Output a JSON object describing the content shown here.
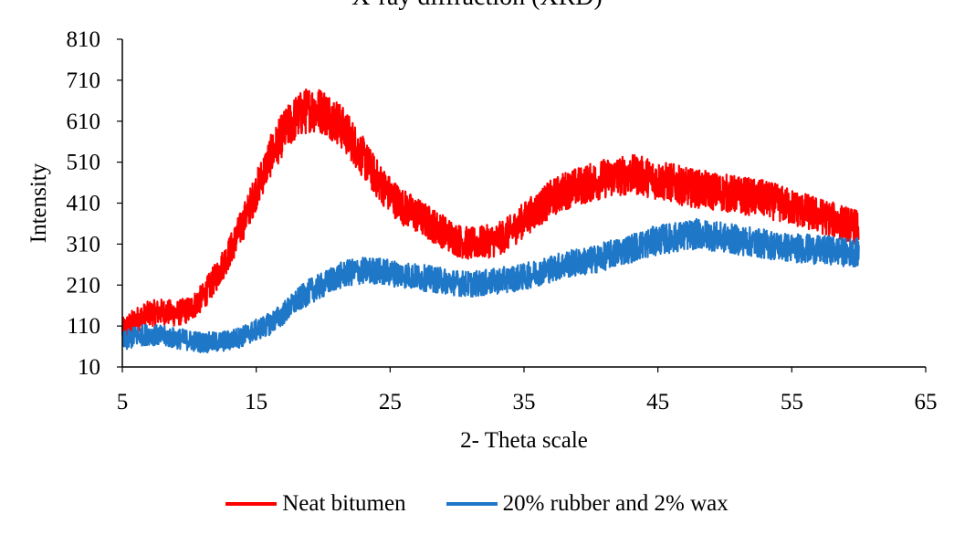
{
  "chart_data": {
    "type": "line",
    "title": "X-ray diffraction (XRD)",
    "xlabel": "2- Theta scale",
    "ylabel": "Intensity",
    "xlim": [
      5,
      65
    ],
    "ylim": [
      10,
      810
    ],
    "xticks": [
      5,
      15,
      25,
      35,
      45,
      55,
      65
    ],
    "yticks": [
      10,
      110,
      210,
      310,
      410,
      510,
      610,
      710,
      810
    ],
    "grid": false,
    "legend_position": "bottom",
    "series": [
      {
        "name": "Neat bitumen",
        "color": "#ff0000",
        "noise": 45,
        "x": [
          5,
          6,
          7,
          8,
          9,
          10,
          11,
          12,
          13,
          14,
          15,
          16,
          17,
          18,
          19,
          20,
          21,
          22,
          23,
          24,
          25,
          26,
          27,
          28,
          29,
          30,
          31,
          32,
          33,
          34,
          35,
          36,
          37,
          38,
          39,
          40,
          41,
          42,
          43,
          44,
          45,
          46,
          47,
          48,
          49,
          50,
          51,
          52,
          53,
          54,
          55,
          56,
          57,
          58,
          59,
          60
        ],
        "y": [
          100,
          125,
          140,
          145,
          140,
          150,
          180,
          230,
          290,
          360,
          440,
          520,
          580,
          620,
          640,
          635,
          610,
          570,
          520,
          470,
          430,
          400,
          380,
          360,
          340,
          320,
          310,
          315,
          320,
          340,
          370,
          395,
          420,
          440,
          450,
          460,
          470,
          475,
          480,
          475,
          465,
          460,
          450,
          445,
          440,
          435,
          430,
          425,
          420,
          410,
          400,
          390,
          380,
          370,
          360,
          350
        ]
      },
      {
        "name": "20% rubber and 2% wax",
        "color": "#1f77c8",
        "noise": 40,
        "x": [
          5,
          6,
          7,
          8,
          9,
          10,
          11,
          12,
          13,
          14,
          15,
          16,
          17,
          18,
          19,
          20,
          21,
          22,
          23,
          24,
          25,
          26,
          27,
          28,
          29,
          30,
          31,
          32,
          33,
          34,
          35,
          36,
          37,
          38,
          39,
          40,
          41,
          42,
          43,
          44,
          45,
          46,
          47,
          48,
          49,
          50,
          51,
          52,
          53,
          54,
          55,
          56,
          57,
          58,
          59,
          60
        ],
        "y": [
          70,
          85,
          90,
          85,
          80,
          75,
          70,
          70,
          75,
          85,
          100,
          115,
          140,
          170,
          195,
          210,
          230,
          240,
          245,
          245,
          240,
          235,
          230,
          225,
          220,
          215,
          212,
          215,
          220,
          225,
          230,
          240,
          250,
          260,
          265,
          270,
          280,
          290,
          300,
          310,
          320,
          325,
          330,
          335,
          330,
          325,
          320,
          315,
          310,
          305,
          300,
          300,
          295,
          295,
          290,
          290
        ]
      }
    ]
  }
}
